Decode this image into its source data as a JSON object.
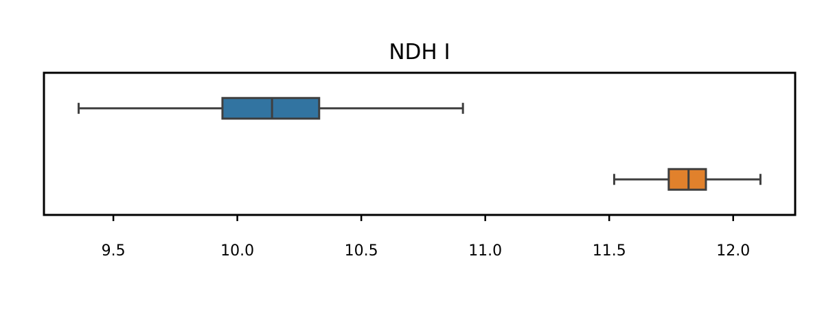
{
  "chart_data": {
    "type": "boxplot",
    "title": "NDH I",
    "xlabel": "",
    "ylabel": "",
    "xlim": [
      9.22,
      12.25
    ],
    "x_ticks": [
      9.5,
      10.0,
      10.5,
      11.0,
      11.5,
      12.0
    ],
    "x_tick_labels": [
      "9.5",
      "10.0",
      "10.5",
      "11.0",
      "11.5",
      "12.0"
    ],
    "orientation": "horizontal",
    "grid": false,
    "legend": "none",
    "series": [
      {
        "whisker_low": 9.36,
        "q1": 9.94,
        "median": 10.14,
        "q3": 10.33,
        "whisker_high": 10.91,
        "color": "#3274a1"
      },
      {
        "whisker_low": 11.52,
        "q1": 11.74,
        "median": 11.82,
        "q3": 11.89,
        "whisker_high": 12.11,
        "color": "#e1812c"
      }
    ]
  }
}
